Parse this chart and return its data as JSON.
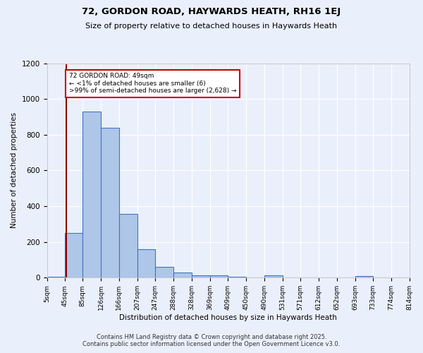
{
  "title": "72, GORDON ROAD, HAYWARDS HEATH, RH16 1EJ",
  "subtitle": "Size of property relative to detached houses in Haywards Heath",
  "xlabel": "Distribution of detached houses by size in Haywards Heath",
  "ylabel": "Number of detached properties",
  "bin_edges": [
    5,
    45,
    85,
    126,
    166,
    207,
    247,
    288,
    328,
    369,
    409,
    450,
    490,
    531,
    571,
    612,
    652,
    693,
    733,
    774,
    814
  ],
  "bin_labels": [
    "5sqm",
    "45sqm",
    "85sqm",
    "126sqm",
    "166sqm",
    "207sqm",
    "247sqm",
    "288sqm",
    "328sqm",
    "369sqm",
    "409sqm",
    "450sqm",
    "490sqm",
    "531sqm",
    "571sqm",
    "612sqm",
    "652sqm",
    "693sqm",
    "733sqm",
    "774sqm",
    "814sqm"
  ],
  "bar_heights": [
    6,
    250,
    930,
    840,
    355,
    160,
    60,
    30,
    15,
    12,
    5,
    0,
    12,
    0,
    0,
    0,
    0,
    10,
    0,
    0
  ],
  "bar_color": "#aec6e8",
  "bar_edge_color": "#4472c4",
  "vline_x": 49,
  "vline_color": "#8b0000",
  "annotation_text": "72 GORDON ROAD: 49sqm\n← <1% of detached houses are smaller (6)\n>99% of semi-detached houses are larger (2,628) →",
  "annotation_box_color": "#ffffff",
  "annotation_box_edge": "#cc0000",
  "ylim": [
    0,
    1200
  ],
  "yticks": [
    0,
    200,
    400,
    600,
    800,
    1000,
    1200
  ],
  "bg_color": "#eaf0fb",
  "grid_color": "#ffffff",
  "footer_line1": "Contains HM Land Registry data © Crown copyright and database right 2025.",
  "footer_line2": "Contains public sector information licensed under the Open Government Licence v3.0."
}
